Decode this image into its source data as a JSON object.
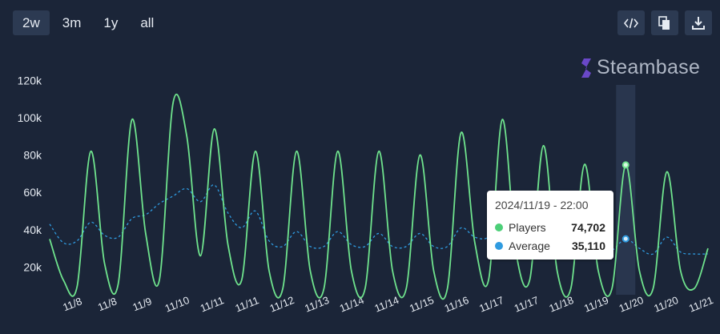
{
  "range_tabs": [
    {
      "label": "2w",
      "active": true
    },
    {
      "label": "3m",
      "active": false
    },
    {
      "label": "1y",
      "active": false
    },
    {
      "label": "all",
      "active": false
    }
  ],
  "toolbar": {
    "embed_icon": "code-icon",
    "copy_icon": "copy-icon",
    "download_icon": "download-icon"
  },
  "brand": {
    "name": "Steambase"
  },
  "colors": {
    "background": "#1b2538",
    "players": "#6fe38d",
    "average": "#2f9be0",
    "highlight": "#2c3a52"
  },
  "tooltip": {
    "title": "2024/11/19 - 22:00",
    "players_label": "Players",
    "players_value": "74,702",
    "average_label": "Average",
    "average_value": "35,110"
  },
  "chart_data": {
    "type": "line",
    "ylim": [
      6000,
      124000
    ],
    "yticks": [
      20000,
      40000,
      60000,
      80000,
      100000,
      120000
    ],
    "ytick_labels": [
      "20k",
      "40k",
      "60k",
      "80k",
      "100k",
      "120k"
    ],
    "xtick_labels": [
      "11/8",
      "11/8",
      "11/9",
      "11/10",
      "11/11",
      "11/11",
      "11/12",
      "11/13",
      "11/14",
      "11/14",
      "11/15",
      "11/16",
      "11/17",
      "11/17",
      "11/18",
      "11/19",
      "11/20",
      "11/20",
      "11/21"
    ],
    "grid": false,
    "hover_index": 12,
    "series": [
      {
        "name": "Players",
        "style": "solid",
        "values": [
          [
            8,
            35000
          ],
          [
            9,
            13000
          ],
          [
            10,
            9500
          ],
          [
            11,
            82000
          ],
          [
            12,
            22000
          ],
          [
            13,
            11000
          ],
          [
            14,
            99000
          ],
          [
            15,
            38000
          ],
          [
            16,
            13000
          ],
          [
            17,
            108000
          ],
          [
            18,
            90000
          ],
          [
            19,
            26000
          ],
          [
            20,
            94000
          ],
          [
            21,
            32000
          ],
          [
            22,
            13000
          ],
          [
            23,
            82000
          ],
          [
            24,
            18000
          ],
          [
            25,
            8500
          ],
          [
            26,
            82000
          ],
          [
            27,
            18000
          ],
          [
            28,
            8500
          ],
          [
            29,
            82000
          ],
          [
            30,
            18000
          ],
          [
            31,
            8500
          ],
          [
            32,
            82000
          ],
          [
            33,
            18000
          ],
          [
            34,
            8500
          ],
          [
            35,
            80000
          ],
          [
            36,
            18000
          ],
          [
            37,
            8500
          ],
          [
            38,
            92000
          ],
          [
            39,
            33000
          ],
          [
            40,
            13000
          ],
          [
            41,
            99000
          ],
          [
            42,
            28000
          ],
          [
            43,
            13000
          ],
          [
            44,
            85000
          ],
          [
            45,
            18000
          ],
          [
            46,
            8500
          ],
          [
            47,
            75000
          ],
          [
            48,
            18000
          ],
          [
            49,
            8500
          ],
          [
            50,
            74702
          ],
          [
            51,
            18000
          ],
          [
            52,
            8500
          ],
          [
            53,
            71000
          ],
          [
            54,
            18000
          ],
          [
            55,
            8500
          ],
          [
            56,
            30000
          ]
        ]
      },
      {
        "name": "Average",
        "style": "dashed",
        "values": [
          [
            8,
            43000
          ],
          [
            9,
            33000
          ],
          [
            10,
            34000
          ],
          [
            11,
            44000
          ],
          [
            12,
            37000
          ],
          [
            13,
            36000
          ],
          [
            14,
            46000
          ],
          [
            15,
            48000
          ],
          [
            16,
            54000
          ],
          [
            17,
            58000
          ],
          [
            18,
            62000
          ],
          [
            19,
            55000
          ],
          [
            20,
            64000
          ],
          [
            21,
            49000
          ],
          [
            22,
            41000
          ],
          [
            23,
            50000
          ],
          [
            24,
            34000
          ],
          [
            25,
            31000
          ],
          [
            26,
            39000
          ],
          [
            27,
            31000
          ],
          [
            28,
            31000
          ],
          [
            29,
            39000
          ],
          [
            30,
            32000
          ],
          [
            31,
            31000
          ],
          [
            32,
            38000
          ],
          [
            33,
            31000
          ],
          [
            34,
            31000
          ],
          [
            35,
            38000
          ],
          [
            36,
            31000
          ],
          [
            37,
            31000
          ],
          [
            38,
            41000
          ],
          [
            39,
            36000
          ],
          [
            40,
            36000
          ],
          [
            41,
            46000
          ],
          [
            42,
            40000
          ],
          [
            43,
            39000
          ],
          [
            44,
            42000
          ],
          [
            45,
            34000
          ],
          [
            46,
            34000
          ],
          [
            47,
            37000
          ],
          [
            48,
            30000
          ],
          [
            49,
            29000
          ],
          [
            50,
            35110
          ],
          [
            51,
            30000
          ],
          [
            52,
            27000
          ],
          [
            53,
            36000
          ],
          [
            54,
            28000
          ],
          [
            55,
            27000
          ],
          [
            56,
            27000
          ]
        ]
      }
    ]
  }
}
